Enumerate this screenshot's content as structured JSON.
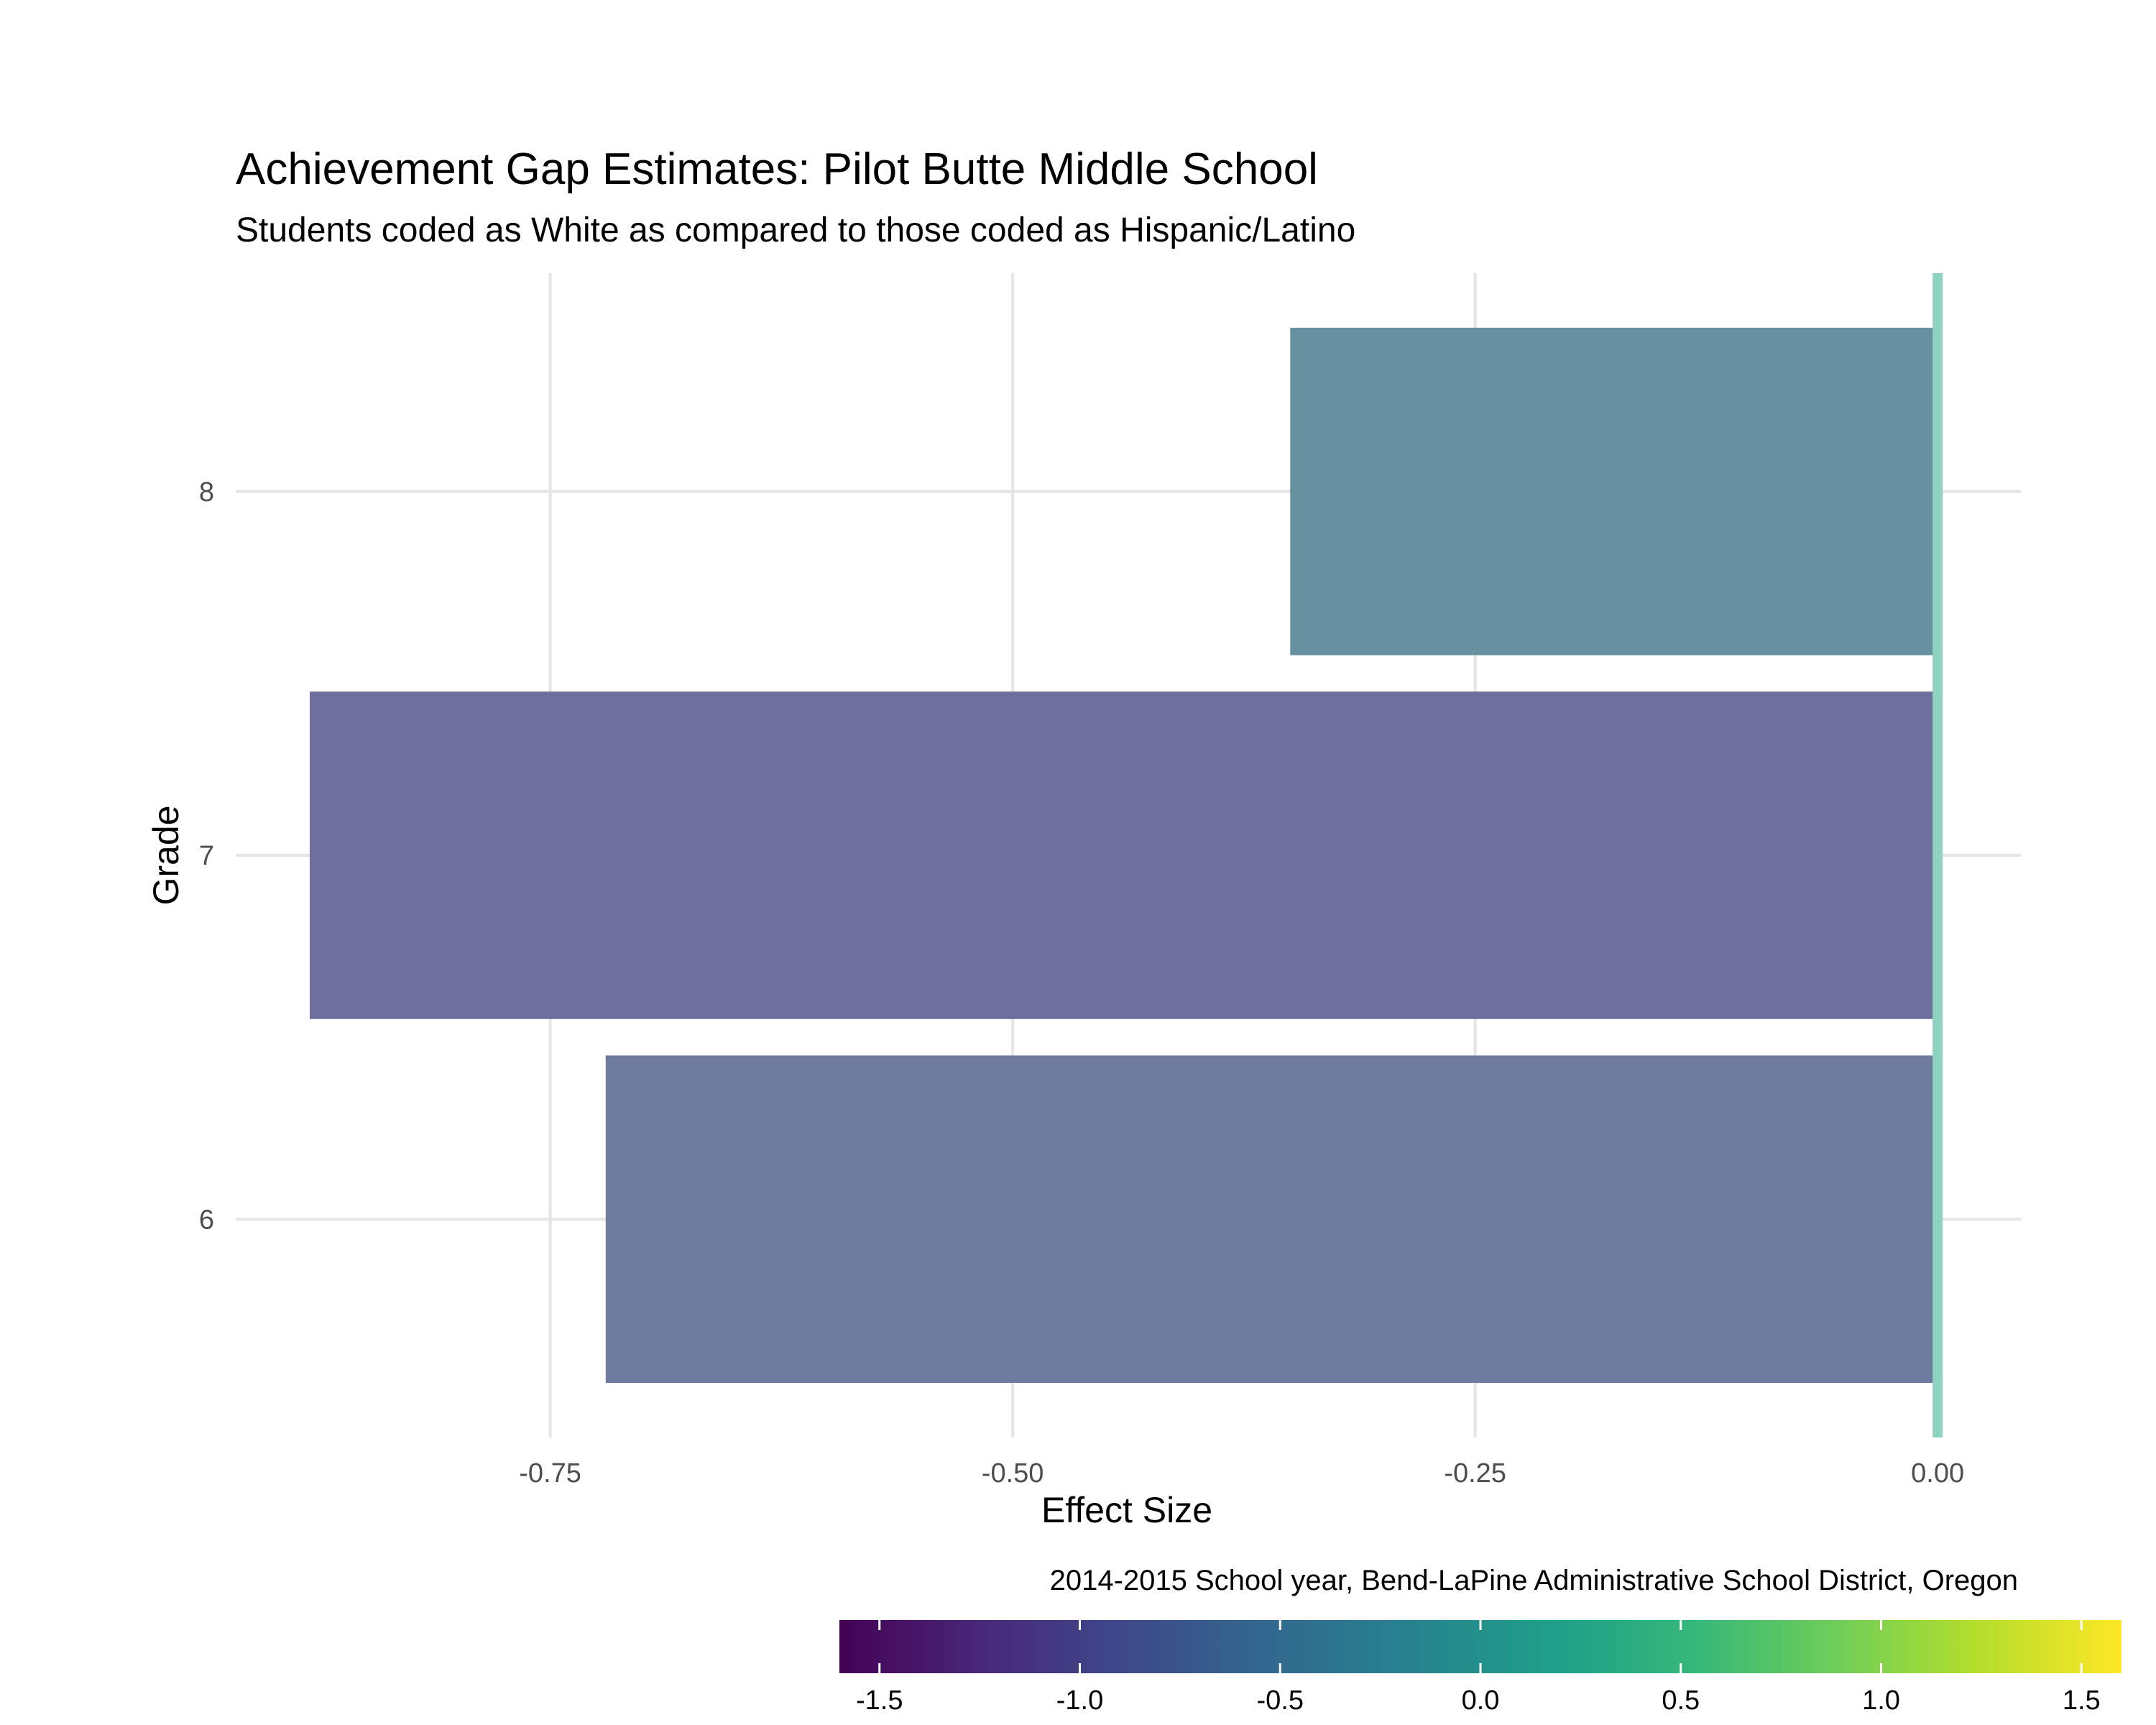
{
  "chart_data": {
    "type": "bar",
    "orientation": "horizontal",
    "title": "Achievement Gap Estimates: Pilot Butte Middle School",
    "subtitle": "Students coded as White as compared to those coded as Hispanic/Latino",
    "xlabel": "Effect Size",
    "ylabel": "Grade",
    "caption": "2014-2015 School year, Bend-LaPine Administrative School District, Oregon",
    "categories": [
      "6",
      "7",
      "8"
    ],
    "values": [
      -0.72,
      -0.88,
      -0.35
    ],
    "xlim": [
      -0.92,
      0.045
    ],
    "x_ticks": [
      -0.75,
      -0.5,
      -0.25,
      0
    ],
    "x_tick_labels": [
      "-0.75",
      "-0.50",
      "-0.25",
      "0.00"
    ],
    "reference_line": 0,
    "grid": true,
    "bar_colors": [
      "#6e7a9e",
      "#6f6f9b",
      "#6791a1"
    ],
    "reference_line_color": "#8dd3c0",
    "colorbar": {
      "range": [
        -1.6,
        1.6
      ],
      "ticks": [
        -1.5,
        -1,
        -0.5,
        0,
        0.5,
        1,
        1.5
      ],
      "tick_labels": [
        "-1.5",
        "-1.0",
        "-0.5",
        "0.0",
        "0.5",
        "1.0",
        "1.5"
      ],
      "colors": [
        "#440154",
        "#482878",
        "#3e4989",
        "#31688e",
        "#26828e",
        "#1f9e89",
        "#35b779",
        "#6ece58",
        "#b5de2b",
        "#fde725"
      ]
    }
  }
}
